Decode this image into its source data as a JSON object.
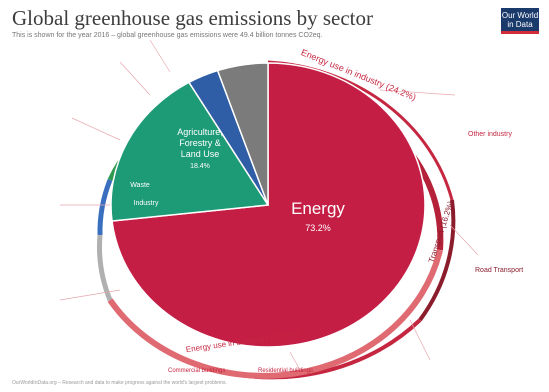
{
  "title": "Global greenhouse gas emissions by sector",
  "subtitle": "This is shown for the year 2016 – global greenhouse gas emissions were 49.4 billion tonnes CO2eq.",
  "logo": {
    "line1": "Our World",
    "line2": "in Data"
  },
  "footer": "OurWorldInData.org – Research and data to make progress against the world's largest problems.",
  "colors": {
    "energy": "#c41e45",
    "agriculture": "#1d9a76",
    "industry": "#7b7b7b",
    "waste": "#2f5da6",
    "outer_dark": "#8b1c2c",
    "outer_mid": "#c52741",
    "outer_light": "#e06a72"
  },
  "chart_data": {
    "type": "pie",
    "title": "Global greenhouse gas emissions by sector",
    "slices": [
      {
        "label_line1": "Energy",
        "label_line2": "73.2%",
        "value": 73.2,
        "color": "#c41e45"
      },
      {
        "label_line1": "Agriculture,",
        "label_line2": "Forestry &",
        "label_line3": "Land Use",
        "label_line4": "18.4%",
        "value": 18.4,
        "color": "#1d9a76"
      },
      {
        "label_line1": "Waste",
        "value": 3.2,
        "color": "#2f5da6"
      },
      {
        "label_line1": "Industry",
        "value": 5.2,
        "color": "#7b7b7b"
      }
    ],
    "outer_labels": [
      "Energy use in industry (24.2%)",
      "Transport (16.2%)",
      "Energy use in buildings (17.5%)",
      "Other industry",
      "Road Transport",
      "Residential buildings",
      "Commercial buildings"
    ]
  }
}
